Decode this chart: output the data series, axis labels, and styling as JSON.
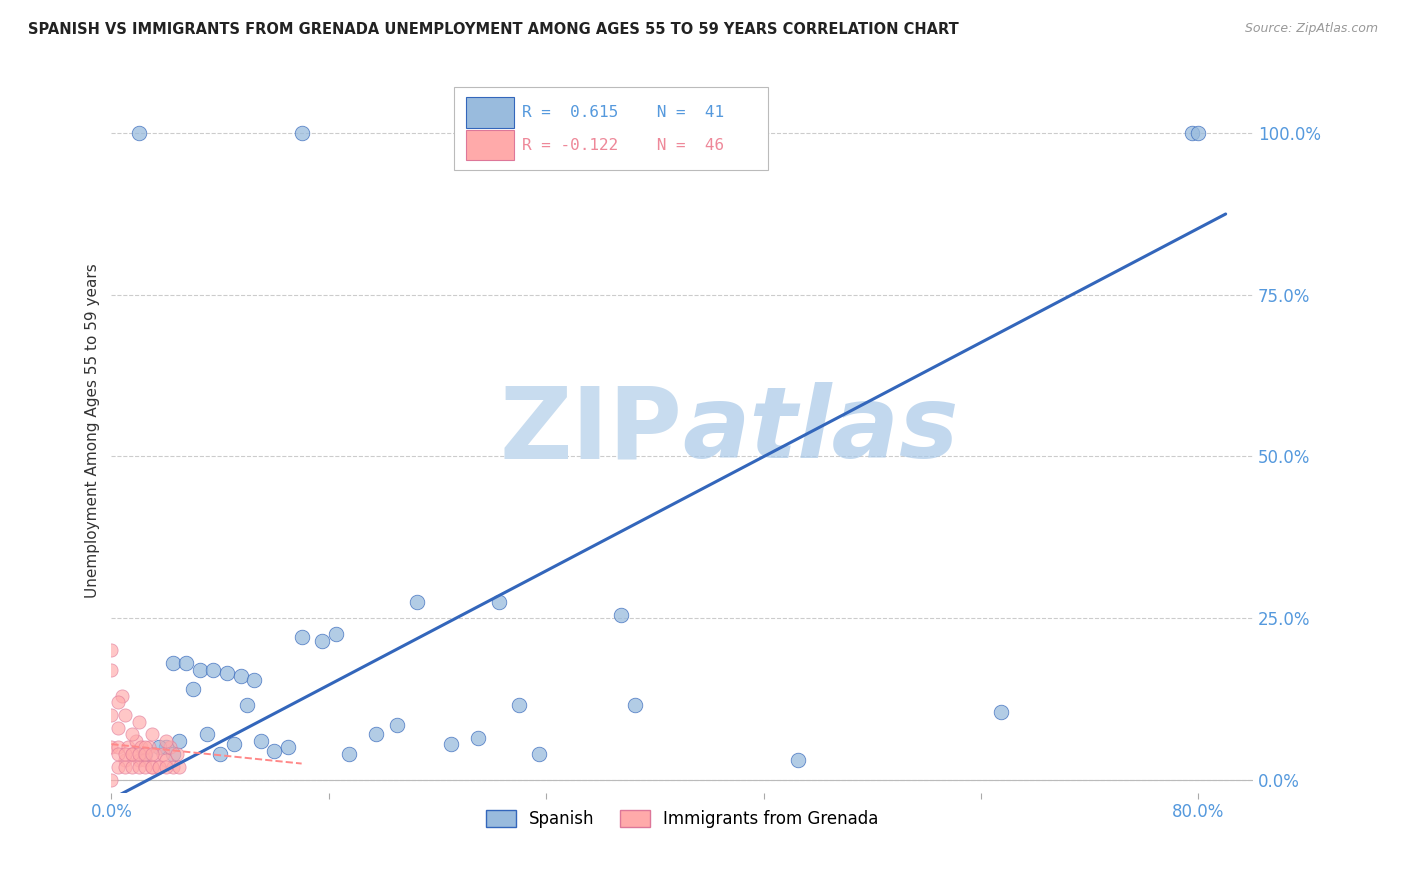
{
  "title": "SPANISH VS IMMIGRANTS FROM GRENADA UNEMPLOYMENT AMONG AGES 55 TO 59 YEARS CORRELATION CHART",
  "source": "Source: ZipAtlas.com",
  "ylabel": "Unemployment Among Ages 55 to 59 years",
  "xlim": [
    0.0,
    0.84
  ],
  "ylim": [
    -0.02,
    1.1
  ],
  "xticks": [
    0.0,
    0.16,
    0.32,
    0.48,
    0.64,
    0.8
  ],
  "xtick_labels": [
    "0.0%",
    "",
    "",
    "",
    "",
    "80.0%"
  ],
  "ytick_labels_right": [
    "0.0%",
    "25.0%",
    "50.0%",
    "75.0%",
    "100.0%"
  ],
  "ytick_positions_right": [
    0.0,
    0.25,
    0.5,
    0.75,
    1.0
  ],
  "legend_R1": "R =  0.615",
  "legend_N1": "N =  41",
  "legend_R2": "R = -0.122",
  "legend_N2": "N =  46",
  "color_spanish": "#99BBDD",
  "color_grenada": "#FFAAAA",
  "color_spanish_line": "#3366BB",
  "color_grenada_line": "#FF8888",
  "watermark_color": "#C8DCEF",
  "spanish_x": [
    0.02,
    0.14,
    0.27,
    0.045,
    0.055,
    0.065,
    0.075,
    0.085,
    0.095,
    0.105,
    0.04,
    0.05,
    0.06,
    0.07,
    0.08,
    0.09,
    0.1,
    0.11,
    0.12,
    0.13,
    0.14,
    0.155,
    0.165,
    0.175,
    0.195,
    0.21,
    0.225,
    0.25,
    0.27,
    0.285,
    0.3,
    0.315,
    0.375,
    0.385,
    0.505,
    0.655,
    0.795,
    0.025,
    0.035,
    0.045,
    0.8
  ],
  "spanish_y": [
    1.0,
    1.0,
    1.0,
    0.18,
    0.18,
    0.17,
    0.17,
    0.165,
    0.16,
    0.155,
    0.05,
    0.06,
    0.14,
    0.07,
    0.04,
    0.055,
    0.115,
    0.06,
    0.045,
    0.05,
    0.22,
    0.215,
    0.225,
    0.04,
    0.07,
    0.085,
    0.275,
    0.055,
    0.065,
    0.275,
    0.115,
    0.04,
    0.255,
    0.115,
    0.03,
    0.105,
    1.0,
    0.04,
    0.05,
    0.04,
    1.0
  ],
  "grenada_x": [
    0.0,
    0.0,
    0.0,
    0.0,
    0.005,
    0.005,
    0.008,
    0.01,
    0.012,
    0.015,
    0.018,
    0.02,
    0.022,
    0.025,
    0.028,
    0.03,
    0.032,
    0.035,
    0.038,
    0.04,
    0.043,
    0.045,
    0.048,
    0.005,
    0.01,
    0.015,
    0.02,
    0.025,
    0.03,
    0.04,
    0.005,
    0.01,
    0.015,
    0.02,
    0.025,
    0.03,
    0.0,
    0.005,
    0.01,
    0.015,
    0.02,
    0.025,
    0.03,
    0.035,
    0.04,
    0.05
  ],
  "grenada_y": [
    0.0,
    0.05,
    0.1,
    0.17,
    0.05,
    0.08,
    0.13,
    0.03,
    0.05,
    0.04,
    0.06,
    0.03,
    0.05,
    0.03,
    0.05,
    0.02,
    0.04,
    0.02,
    0.04,
    0.03,
    0.05,
    0.02,
    0.04,
    0.12,
    0.1,
    0.07,
    0.09,
    0.05,
    0.07,
    0.06,
    0.02,
    0.02,
    0.02,
    0.02,
    0.02,
    0.02,
    0.2,
    0.04,
    0.04,
    0.04,
    0.04,
    0.04,
    0.04,
    0.02,
    0.02,
    0.02
  ],
  "background_color": "#FFFFFF",
  "grid_color": "#CCCCCC",
  "title_color": "#222222",
  "axis_label_color": "#333333",
  "right_axis_color": "#5599DD",
  "sp_line_x0": 0.0,
  "sp_line_y0": -0.03,
  "sp_line_x1": 0.82,
  "sp_line_y1": 0.875,
  "gr_line_x0": 0.0,
  "gr_line_y0": 0.055,
  "gr_line_x1": 0.14,
  "gr_line_y1": 0.025
}
